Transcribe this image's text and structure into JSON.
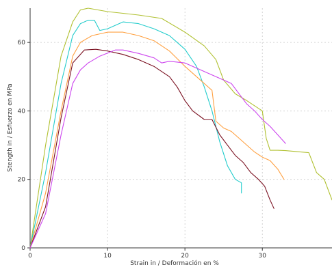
{
  "chart_data": {
    "type": "line",
    "title": "",
    "xlabel": "Strain in / Deformación en %",
    "ylabel": "Stength in / Esfuerzo en MPa",
    "xlim": [
      0,
      39
    ],
    "ylim": [
      0,
      70
    ],
    "x_ticks": [
      0,
      10,
      20,
      30
    ],
    "y_ticks": [
      0,
      20,
      40,
      60
    ],
    "grid": true,
    "legend": "none",
    "series": [
      {
        "color": "#b0c030",
        "x": [
          0,
          2,
          4,
          5.5,
          6.5,
          7.5,
          10,
          14,
          17,
          20,
          22.5,
          24,
          25,
          26.5,
          28,
          30,
          30.5,
          31,
          32,
          33,
          34,
          35,
          36,
          37,
          38,
          39
        ],
        "y": [
          0,
          30,
          56,
          66,
          69.5,
          70,
          69,
          68,
          67,
          63,
          59,
          55,
          49,
          45,
          43,
          40,
          32,
          28.5,
          28.5,
          28.4,
          28.2,
          28,
          27.8,
          22,
          20,
          14
        ]
      },
      {
        "color": "#22cccc",
        "x": [
          0,
          2,
          4,
          5.5,
          6.5,
          7.5,
          8.3,
          9,
          10,
          12,
          14,
          16,
          18,
          20,
          21.5,
          22.5,
          23.5,
          24.5,
          25.5,
          26.5,
          27.3,
          27.3
        ],
        "y": [
          0,
          22,
          48,
          62,
          65.5,
          66.5,
          66.5,
          63.5,
          64,
          66,
          65.5,
          64,
          62,
          58,
          53,
          47,
          40,
          31,
          24,
          20,
          19,
          16
        ]
      },
      {
        "color": "#ffa040",
        "x": [
          0,
          2,
          4,
          5.5,
          6.5,
          8,
          10,
          12,
          14,
          16,
          18,
          20,
          22,
          23.5,
          24,
          25,
          26,
          27,
          28,
          29,
          30,
          31,
          32,
          32.8
        ],
        "y": [
          0,
          16,
          40,
          56,
          60,
          62,
          63,
          63,
          62,
          60.5,
          57.5,
          53,
          49,
          46,
          37,
          35,
          34,
          32,
          30,
          28,
          26.5,
          25.5,
          23,
          20
        ]
      },
      {
        "color": "#7a1020",
        "x": [
          0,
          2,
          4,
          5.5,
          7,
          8.5,
          10,
          11,
          12,
          14,
          16,
          18,
          19,
          20,
          21,
          22.5,
          23.5,
          24.5,
          25.5,
          26.5,
          27.5,
          28.5,
          29.5,
          30.3,
          31,
          31.5
        ],
        "y": [
          0,
          12,
          38,
          54,
          57.8,
          58,
          57.5,
          57,
          56.5,
          55,
          53,
          50,
          47,
          43,
          40,
          37.5,
          37.5,
          33,
          30,
          27,
          25,
          22,
          20,
          18,
          14,
          11.5
        ]
      },
      {
        "color": "#cc44ee",
        "x": [
          0,
          2,
          4,
          5.5,
          6.5,
          7.5,
          9,
          11,
          12,
          14,
          16,
          17,
          18,
          20,
          22,
          24,
          26,
          27,
          28,
          29,
          30,
          31,
          32,
          33
        ],
        "y": [
          0,
          10,
          33,
          48,
          52,
          54,
          56,
          57.8,
          57.8,
          56.8,
          55.5,
          54,
          54.5,
          54,
          52,
          50,
          48,
          45,
          42,
          40,
          37.5,
          35.5,
          33,
          30.5
        ]
      }
    ]
  }
}
